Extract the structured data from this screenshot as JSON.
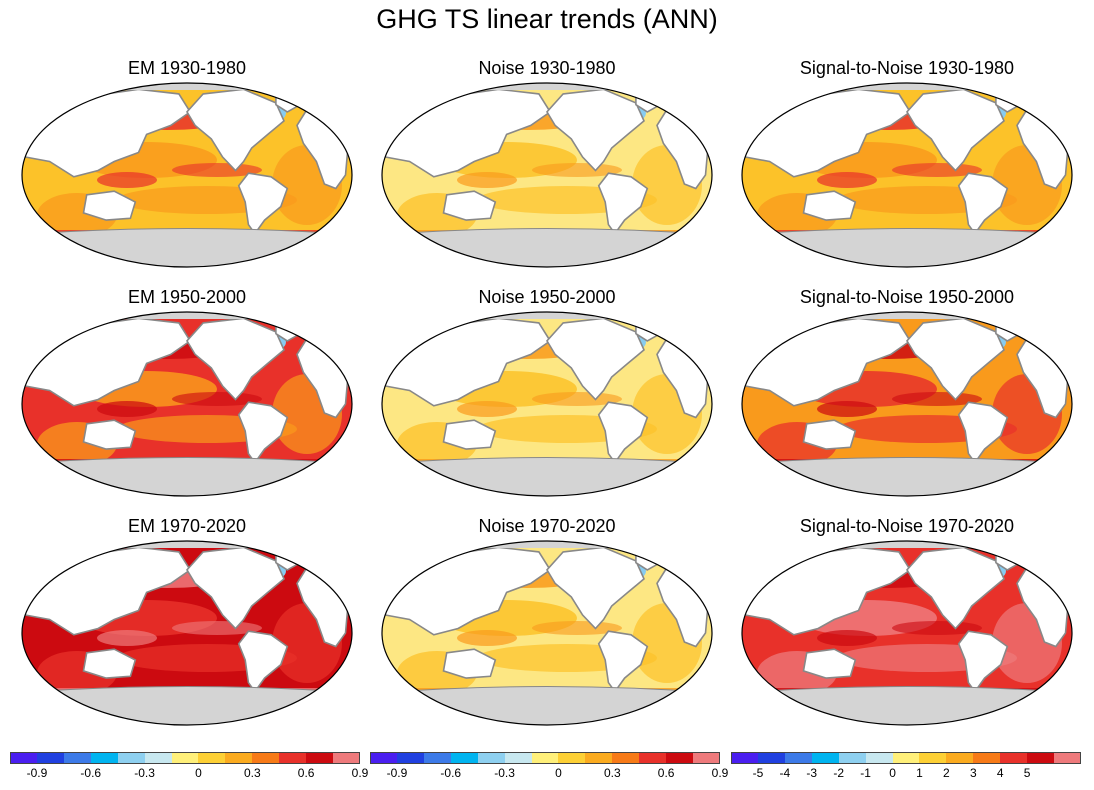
{
  "title": "GHG TS linear trends (ANN)",
  "panels": [
    {
      "title": "EM 1930-1980",
      "theme": "moderate"
    },
    {
      "title": "Noise 1930-1980",
      "theme": "light"
    },
    {
      "title": "Signal-to-Noise 1930-1980",
      "theme": "snr_low"
    },
    {
      "title": "EM 1950-2000",
      "theme": "strong"
    },
    {
      "title": "Noise 1950-2000",
      "theme": "light"
    },
    {
      "title": "Signal-to-Noise 1950-2000",
      "theme": "snr_mid"
    },
    {
      "title": "EM 1970-2020",
      "theme": "very_strong"
    },
    {
      "title": "Noise 1970-2020",
      "theme": "light"
    },
    {
      "title": "Signal-to-Noise 1970-2020",
      "theme": "snr_high"
    }
  ],
  "themes": {
    "moderate": {
      "ocean": "#fcc229",
      "accent": "#f99a1c",
      "hot": "#e8312a"
    },
    "light": {
      "ocean": "#fde783",
      "accent": "#fcc229",
      "hot": "#f99a1c"
    },
    "snr_low": {
      "ocean": "#fcc229",
      "accent": "#f99a1c",
      "hot": "#e8312a"
    },
    "strong": {
      "ocean": "#e8312a",
      "accent": "#f99a1c",
      "hot": "#cc0a10"
    },
    "snr_mid": {
      "ocean": "#f99a1c",
      "accent": "#e8312a",
      "hot": "#cc0a10"
    },
    "very_strong": {
      "ocean": "#cc0a10",
      "accent": "#e8312a",
      "hot": "#ee7a7c"
    },
    "snr_high": {
      "ocean": "#e8312a",
      "accent": "#ee7a7c",
      "hot": "#cc0a10"
    }
  },
  "colors": {
    "land": "#ffffff",
    "antarctica": "#d4d4d4",
    "coast": "#888888",
    "cold": "#3333ee",
    "cool": "#88ccf0"
  },
  "colorbars": [
    {
      "name": "em",
      "labels": [
        "-0.9",
        "-0.6",
        "-0.3",
        "0",
        "0.3",
        "0.6",
        "0.9"
      ]
    },
    {
      "name": "noise",
      "labels": [
        "-0.9",
        "-0.6",
        "-0.3",
        "0",
        "0.3",
        "0.6",
        "0.9"
      ]
    },
    {
      "name": "snr",
      "labels": [
        "-5",
        "-4",
        "-3",
        "-2",
        "-1",
        "0",
        "1",
        "2",
        "3",
        "4",
        "5"
      ]
    }
  ],
  "colorbar_colors": [
    "#4a1ef0",
    "#2040e0",
    "#3c7ae8",
    "#00b4f0",
    "#8ed0f0",
    "#c8e8f0",
    "#fff07a",
    "#fdd035",
    "#fbab1f",
    "#f77a17",
    "#e8312a",
    "#cc0a10",
    "#ee7a7c"
  ]
}
